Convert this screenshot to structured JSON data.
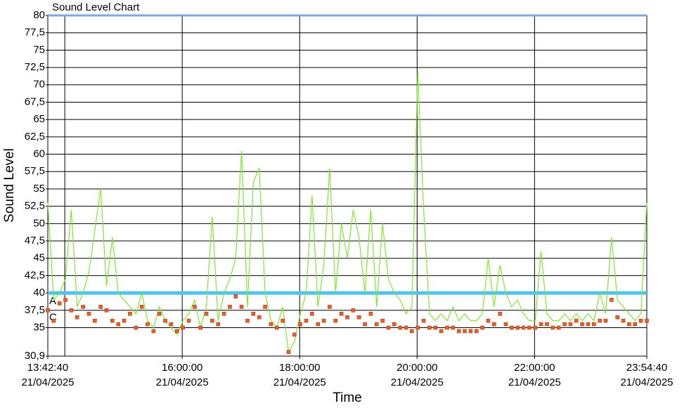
{
  "chart_data": {
    "type": "line",
    "title": "Sound Level Chart",
    "x_label": "Time",
    "y_label": "Sound Level",
    "x": [
      "21/04/2025 13:42:40",
      "21/04/2025 13:48:40",
      "21/04/2025 13:54:40",
      "21/04/2025 14:00:40",
      "21/04/2025 14:06:40",
      "21/04/2025 14:12:40",
      "21/04/2025 14:18:40",
      "21/04/2025 14:24:40",
      "21/04/2025 14:30:40",
      "21/04/2025 14:36:40",
      "21/04/2025 14:42:40",
      "21/04/2025 14:48:40",
      "21/04/2025 14:54:40",
      "21/04/2025 15:00:40",
      "21/04/2025 15:06:40",
      "21/04/2025 15:12:40",
      "21/04/2025 15:18:40",
      "21/04/2025 15:24:40",
      "21/04/2025 15:30:40",
      "21/04/2025 15:36:40",
      "21/04/2025 15:42:40",
      "21/04/2025 15:48:40",
      "21/04/2025 15:54:40",
      "21/04/2025 16:00:40",
      "21/04/2025 16:06:40",
      "21/04/2025 16:12:40",
      "21/04/2025 16:18:40",
      "21/04/2025 16:24:40",
      "21/04/2025 16:30:40",
      "21/04/2025 16:36:40",
      "21/04/2025 16:42:40",
      "21/04/2025 16:48:40",
      "21/04/2025 16:54:40",
      "21/04/2025 17:00:40",
      "21/04/2025 17:06:40",
      "21/04/2025 17:12:40",
      "21/04/2025 17:18:40",
      "21/04/2025 17:24:40",
      "21/04/2025 17:30:40",
      "21/04/2025 17:36:40",
      "21/04/2025 17:42:40",
      "21/04/2025 17:48:40",
      "21/04/2025 17:54:40",
      "21/04/2025 18:00:40",
      "21/04/2025 18:06:40",
      "21/04/2025 18:12:40",
      "21/04/2025 18:18:40",
      "21/04/2025 18:24:40",
      "21/04/2025 18:30:40",
      "21/04/2025 18:36:40",
      "21/04/2025 18:42:40",
      "21/04/2025 18:48:40",
      "21/04/2025 18:54:40",
      "21/04/2025 19:00:40",
      "21/04/2025 19:06:40",
      "21/04/2025 19:12:40",
      "21/04/2025 19:18:40",
      "21/04/2025 19:24:40",
      "21/04/2025 19:30:40",
      "21/04/2025 19:36:40",
      "21/04/2025 19:42:40",
      "21/04/2025 19:48:40",
      "21/04/2025 19:54:40",
      "21/04/2025 20:00:40",
      "21/04/2025 20:06:40",
      "21/04/2025 20:12:40",
      "21/04/2025 20:18:40",
      "21/04/2025 20:24:40",
      "21/04/2025 20:30:40",
      "21/04/2025 20:36:40",
      "21/04/2025 20:42:40",
      "21/04/2025 20:48:40",
      "21/04/2025 20:54:40",
      "21/04/2025 21:00:40",
      "21/04/2025 21:06:40",
      "21/04/2025 21:12:40",
      "21/04/2025 21:18:40",
      "21/04/2025 21:24:40",
      "21/04/2025 21:30:40",
      "21/04/2025 21:36:40",
      "21/04/2025 21:42:40",
      "21/04/2025 21:48:40",
      "21/04/2025 21:54:40",
      "21/04/2025 22:00:40",
      "21/04/2025 22:06:40",
      "21/04/2025 22:12:40",
      "21/04/2025 22:18:40",
      "21/04/2025 22:24:40",
      "21/04/2025 22:30:40",
      "21/04/2025 22:36:40",
      "21/04/2025 22:42:40",
      "21/04/2025 22:48:40",
      "21/04/2025 22:54:40",
      "21/04/2025 23:00:40",
      "21/04/2025 23:06:40",
      "21/04/2025 23:12:40",
      "21/04/2025 23:18:40",
      "21/04/2025 23:24:40",
      "21/04/2025 23:30:40",
      "21/04/2025 23:36:40",
      "21/04/2025 23:42:40",
      "21/04/2025 23:48:40",
      "21/04/2025 23:54:40"
    ],
    "series": [
      {
        "style": "line",
        "color": "#7ee830",
        "values": [
          53,
          39,
          40,
          42,
          52,
          38,
          40,
          43,
          49,
          55,
          41,
          48,
          40,
          39,
          38,
          37,
          40,
          36,
          35,
          38,
          36,
          35,
          34,
          36,
          37,
          39,
          35,
          38,
          51,
          36,
          40,
          42,
          45,
          60.5,
          38,
          56,
          58,
          40,
          36,
          35,
          38,
          31.5,
          33,
          37,
          40,
          54,
          38,
          44,
          58,
          40,
          50,
          45,
          52,
          48,
          40,
          52,
          38,
          50,
          42,
          40,
          39,
          37,
          38,
          72,
          52,
          37,
          36,
          37,
          36,
          38,
          36,
          37,
          36,
          36,
          37,
          45,
          38,
          44,
          40,
          38,
          39,
          37,
          36,
          36,
          46,
          37,
          36,
          36,
          37,
          36,
          37,
          36,
          37,
          36,
          40,
          37,
          48,
          39,
          38,
          37,
          36,
          37,
          53
        ]
      },
      {
        "style": "markers",
        "color": "#e8602a",
        "values": [
          37.5,
          36,
          38.5,
          39,
          37.5,
          36.5,
          38,
          37,
          36,
          38,
          37.5,
          36,
          35.5,
          36,
          37,
          35,
          38,
          35.5,
          34.5,
          37,
          36,
          35.5,
          34.5,
          35,
          36,
          38,
          35,
          37,
          36,
          35.5,
          37,
          38,
          39.5,
          38,
          36,
          37,
          36.5,
          38,
          35.5,
          35,
          36,
          31.5,
          34,
          35.5,
          36,
          37,
          35.5,
          36,
          38,
          36,
          37,
          36.5,
          37.5,
          36.5,
          35.5,
          37,
          35.5,
          36,
          35,
          35.5,
          35,
          35,
          34.5,
          35,
          36,
          35,
          35,
          34.5,
          35,
          35,
          34.5,
          34.5,
          34.5,
          34.5,
          35,
          36,
          35.5,
          37,
          35.5,
          35,
          35,
          35,
          35,
          35,
          35.5,
          35.5,
          35,
          35,
          35.5,
          35.5,
          36,
          35.5,
          35.5,
          35.5,
          36,
          36,
          39,
          36.5,
          36,
          35.5,
          35.5,
          36,
          36
        ]
      }
    ],
    "threshold": {
      "value": 40,
      "color": "#4fc3f0"
    },
    "annotations": [
      {
        "text": "A",
        "y": 38.8
      },
      {
        "text": "C",
        "y": 36.4
      }
    ],
    "xlim": [
      "21/04/2025 13:42:40",
      "21/04/2025 23:54:40"
    ],
    "xticks": [
      {
        "value": "21/04/2025 13:42:40",
        "label": "13:42:40 21/04/2025"
      },
      {
        "value": "21/04/2025 16:00:00",
        "label": "16:00:00 21/04/2025"
      },
      {
        "value": "21/04/2025 18:00:00",
        "label": "18:00:00 21/04/2025"
      },
      {
        "value": "21/04/2025 20:00:00",
        "label": "20:00:00 21/04/2025"
      },
      {
        "value": "21/04/2025 22:00:00",
        "label": "22:00:00 21/04/2025"
      },
      {
        "value": "21/04/2025 23:54:40",
        "label": "23:54:40 21/04/2025"
      }
    ],
    "x_gridlines": [
      "21/04/2025 14:00:00",
      "21/04/2025 16:00:00",
      "21/04/2025 18:00:00",
      "21/04/2025 20:00:00",
      "21/04/2025 22:00:00"
    ],
    "ylim": [
      30.9,
      80
    ],
    "yticks": [
      {
        "value": 30.9,
        "label": "30,9"
      },
      35,
      {
        "value": 37.5,
        "label": "37,5"
      },
      40,
      {
        "value": 42.5,
        "label": "42,5"
      },
      45,
      {
        "value": 47.5,
        "label": "47,5"
      },
      50,
      {
        "value": 52.5,
        "label": "52,5"
      },
      55,
      {
        "value": 57.5,
        "label": "57,5"
      },
      60,
      {
        "value": 62.5,
        "label": "62,5"
      },
      65,
      {
        "value": 67.5,
        "label": "67,5"
      },
      70,
      {
        "value": 72.5,
        "label": "72,5"
      },
      75,
      {
        "value": 77.5,
        "label": "77,5"
      },
      80
    ],
    "grid": true
  }
}
